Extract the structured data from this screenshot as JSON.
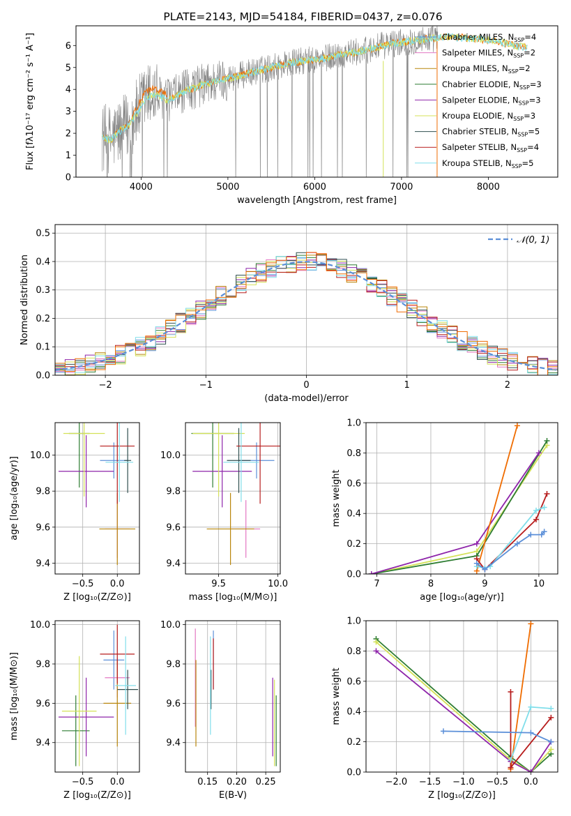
{
  "colors": {
    "chabrier_miles": "#5b8fd8",
    "salpeter_miles": "#e377c2",
    "kroupa_miles": "#b8860b",
    "chabrier_elodie": "#2e7d32",
    "salpeter_elodie": "#8e24aa",
    "kroupa_elodie": "#d4e157",
    "chabrier_stelib": "#2f4f4f",
    "salpeter_stelib": "#b71c1c",
    "kroupa_stelib": "#80deea",
    "data": "#808080",
    "orange": "#ef6c00",
    "normal": "#5b8fd8"
  },
  "chart_data": [
    {
      "id": "spectrum",
      "type": "line",
      "title": "PLATE=2143, MJD=54184, FIBERID=0437, z=0.076",
      "xlabel": "wavelength [Angstrom, rest frame]",
      "ylabel": "Flux [fλ10⁻¹⁷ erg cm⁻² s⁻¹ A⁻¹]",
      "xlim": [
        3250,
        8800
      ],
      "ylim": [
        0,
        6.9
      ],
      "xticks": [
        4000,
        5000,
        6000,
        7000,
        8000
      ],
      "yticks": [
        0,
        1,
        2,
        3,
        4,
        5,
        6
      ],
      "legend_position": "top-right",
      "legend": [
        {
          "imf": "Chabrier",
          "lib": "MILES",
          "n": "=4",
          "color_key": "chabrier_miles"
        },
        {
          "imf": "Salpeter",
          "lib": "MILES",
          "n": "=2",
          "color_key": "salpeter_miles"
        },
        {
          "imf": "Kroupa",
          "lib": "MILES",
          "n": "=2",
          "color_key": "kroupa_miles"
        },
        {
          "imf": "Chabrier",
          "lib": "ELODIE",
          "n": "=3",
          "color_key": "chabrier_elodie"
        },
        {
          "imf": "Salpeter",
          "lib": "ELODIE",
          "n": "=3",
          "color_key": "salpeter_elodie"
        },
        {
          "imf": "Kroupa",
          "lib": "ELODIE",
          "n": "=3",
          "color_key": "kroupa_elodie"
        },
        {
          "imf": "Chabrier",
          "lib": "STELIB",
          "n": "=5",
          "color_key": "chabrier_stelib"
        },
        {
          "imf": "Salpeter",
          "lib": "STELIB",
          "n": "=4",
          "color_key": "salpeter_stelib"
        },
        {
          "imf": "Kroupa",
          "lib": "STELIB",
          "n": "=5",
          "color_key": "kroupa_stelib"
        }
      ],
      "model_continuum": [
        [
          3550,
          1.8
        ],
        [
          3650,
          1.7
        ],
        [
          3750,
          2.1
        ],
        [
          3850,
          2.3
        ],
        [
          3950,
          2.9
        ],
        [
          4050,
          3.6
        ],
        [
          4150,
          3.8
        ],
        [
          4300,
          3.5
        ],
        [
          4500,
          3.9
        ],
        [
          4700,
          4.2
        ],
        [
          4900,
          4.4
        ],
        [
          5100,
          4.6
        ],
        [
          5300,
          4.8
        ],
        [
          5500,
          5.0
        ],
        [
          5700,
          5.2
        ],
        [
          5900,
          5.3
        ],
        [
          6100,
          5.4
        ],
        [
          6300,
          5.6
        ],
        [
          6500,
          5.7
        ],
        [
          6700,
          5.9
        ],
        [
          6900,
          6.1
        ],
        [
          7100,
          6.2
        ],
        [
          7300,
          6.3
        ],
        [
          7500,
          6.4
        ],
        [
          7700,
          6.35
        ],
        [
          7900,
          6.3
        ],
        [
          8100,
          6.2
        ],
        [
          8300,
          6.0
        ],
        [
          8450,
          5.9
        ]
      ],
      "data_span": [
        3550,
        7420
      ]
    },
    {
      "id": "residuals",
      "type": "line",
      "xlabel": "(data-model)/error",
      "ylabel": "Normed distribution",
      "xlim": [
        -2.5,
        2.5
      ],
      "ylim": [
        0,
        0.53
      ],
      "xticks": [
        -2,
        -1,
        0,
        1,
        2
      ],
      "xtick_labels": [
        "−2",
        "−1",
        "0",
        "1",
        "2"
      ],
      "yticks": [
        0,
        0.1,
        0.2,
        0.3,
        0.4,
        0.5
      ],
      "ytick_labels": [
        "0.0",
        "0.1",
        "0.2",
        "0.3",
        "0.4",
        "0.5"
      ],
      "grid": true,
      "legend_position": "top-right",
      "normal_label": "𝒩(0, 1)",
      "bin_width": 0.1
    },
    {
      "id": "age_vs_Z",
      "type": "scatter",
      "xlabel": "Z [log₁₀(Z/Z⊙)]",
      "ylabel": "age  [log₁₀(age/yr)]",
      "xlim": [
        -0.9,
        0.32
      ],
      "ylim": [
        9.34,
        10.18
      ],
      "xticks": [
        -0.5,
        0.0
      ],
      "xtick_labels": [
        "−0.5",
        "0.0"
      ],
      "yticks": [
        9.4,
        9.6,
        9.8,
        10.0
      ],
      "ytick_labels": [
        "9.4",
        "9.6",
        "9.8",
        "10.0"
      ],
      "grid": true,
      "points": [
        {
          "color_key": "chabrier_miles",
          "x": -0.05,
          "xerr": 0.2,
          "y": 9.97,
          "yerr": 0.1
        },
        {
          "color_key": "salpeter_miles",
          "x": 0.0,
          "xerr": 0.18,
          "y": 9.59,
          "yerr": 0.16
        },
        {
          "color_key": "kroupa_miles",
          "x": 0.0,
          "xerr": 0.26,
          "y": 9.59,
          "yerr": 0.2
        },
        {
          "color_key": "chabrier_elodie",
          "x": -0.55,
          "xerr": 0.15,
          "y": 10.12,
          "yerr": 0.3
        },
        {
          "color_key": "salpeter_elodie",
          "x": -0.45,
          "xerr": 0.4,
          "y": 9.91,
          "yerr": 0.2
        },
        {
          "color_key": "kroupa_elodie",
          "x": -0.48,
          "xerr": 0.3,
          "y": 10.12,
          "yerr": 0.35
        },
        {
          "color_key": "chabrier_stelib",
          "x": 0.15,
          "xerr": 0.05,
          "y": 9.97,
          "yerr": 0.18
        },
        {
          "color_key": "salpeter_stelib",
          "x": 0.0,
          "xerr": 0.25,
          "y": 10.05,
          "yerr": 0.32
        },
        {
          "color_key": "kroupa_stelib",
          "x": 0.03,
          "xerr": 0.2,
          "y": 9.96,
          "yerr": 0.22
        }
      ]
    },
    {
      "id": "age_vs_mass",
      "type": "scatter",
      "xlabel": "mass [log₁₀(M/M⊙)]",
      "ylabel": "",
      "xlim": [
        9.22,
        10.02
      ],
      "ylim": [
        9.34,
        10.18
      ],
      "xticks": [
        9.5,
        10.0
      ],
      "xtick_labels": [
        "9.5",
        "10.0"
      ],
      "yticks": [
        9.4,
        9.6,
        9.8,
        10.0
      ],
      "ytick_labels": [
        "9.4",
        "9.6",
        "9.8",
        "10.0"
      ],
      "grid": true,
      "points": [
        {
          "color_key": "chabrier_miles",
          "x": 9.82,
          "xerr": 0.15,
          "y": 9.97,
          "yerr": 0.1
        },
        {
          "color_key": "salpeter_miles",
          "x": 9.73,
          "xerr": 0.12,
          "y": 9.59,
          "yerr": 0.16
        },
        {
          "color_key": "kroupa_miles",
          "x": 9.6,
          "xerr": 0.2,
          "y": 9.59,
          "yerr": 0.2
        },
        {
          "color_key": "chabrier_elodie",
          "x": 9.45,
          "xerr": 0.18,
          "y": 10.12,
          "yerr": 0.3
        },
        {
          "color_key": "salpeter_elodie",
          "x": 9.53,
          "xerr": 0.25,
          "y": 9.91,
          "yerr": 0.2
        },
        {
          "color_key": "kroupa_elodie",
          "x": 9.5,
          "xerr": 0.22,
          "y": 10.12,
          "yerr": 0.35
        },
        {
          "color_key": "chabrier_stelib",
          "x": 9.67,
          "xerr": 0.1,
          "y": 9.97,
          "yerr": 0.18
        },
        {
          "color_key": "salpeter_stelib",
          "x": 9.85,
          "xerr": 0.2,
          "y": 10.05,
          "yerr": 0.32
        },
        {
          "color_key": "kroupa_stelib",
          "x": 9.69,
          "xerr": 0.15,
          "y": 9.96,
          "yerr": 0.22
        }
      ]
    },
    {
      "id": "weight_vs_age",
      "type": "line",
      "xlabel": "age  [log₁₀(age/yr)]",
      "ylabel": "mass weight",
      "xlim": [
        6.8,
        10.35
      ],
      "ylim": [
        0,
        1.0
      ],
      "xticks": [
        7,
        8,
        9,
        10
      ],
      "yticks": [
        0,
        0.2,
        0.4,
        0.6,
        0.8,
        1.0
      ],
      "ytick_labels": [
        "0.0",
        "0.2",
        "0.4",
        "0.6",
        "0.8",
        "1.0"
      ],
      "grid": true,
      "series": [
        {
          "color_key": "kroupa_elodie",
          "points": [
            [
              6.9,
              0.0
            ],
            [
              8.85,
              0.15
            ],
            [
              10.15,
              0.85
            ]
          ]
        },
        {
          "color_key": "chabrier_elodie",
          "points": [
            [
              6.9,
              0.0
            ],
            [
              8.85,
              0.12
            ],
            [
              10.15,
              0.88
            ]
          ]
        },
        {
          "color_key": "salpeter_elodie",
          "points": [
            [
              6.9,
              0.0
            ],
            [
              8.85,
              0.2
            ],
            [
              10.0,
              0.8
            ]
          ]
        },
        {
          "color_key": "orange",
          "points": [
            [
              8.85,
              0.02
            ],
            [
              9.6,
              0.98
            ]
          ]
        },
        {
          "color_key": "salpeter_stelib",
          "points": [
            [
              8.85,
              0.1
            ],
            [
              9.0,
              0.03
            ],
            [
              9.95,
              0.36
            ],
            [
              10.15,
              0.53
            ]
          ]
        },
        {
          "color_key": "kroupa_stelib",
          "points": [
            [
              8.85,
              0.05
            ],
            [
              9.0,
              0.04
            ],
            [
              9.1,
              0.05
            ],
            [
              9.95,
              0.42
            ],
            [
              10.1,
              0.44
            ]
          ]
        },
        {
          "color_key": "chabrier_miles",
          "points": [
            [
              8.85,
              0.07
            ],
            [
              9.0,
              0.03
            ],
            [
              9.6,
              0.2
            ],
            [
              9.85,
              0.26
            ],
            [
              10.05,
              0.26
            ],
            [
              10.1,
              0.28
            ]
          ]
        }
      ]
    },
    {
      "id": "mass_vs_Z",
      "type": "scatter",
      "xlabel": "Z [log₁₀(Z/Z⊙)]",
      "ylabel": "mass [log₁₀(M/M⊙)]",
      "xlim": [
        -0.9,
        0.32
      ],
      "ylim": [
        9.25,
        10.02
      ],
      "xticks": [
        -0.5,
        0.0
      ],
      "xtick_labels": [
        "−0.5",
        "0.0"
      ],
      "yticks": [
        9.4,
        9.6,
        9.8,
        10.0
      ],
      "ytick_labels": [
        "9.4",
        "9.6",
        "9.8",
        "10.0"
      ],
      "grid": true,
      "points": [
        {
          "color_key": "chabrier_miles",
          "x": -0.05,
          "xerr": 0.15,
          "y": 9.82,
          "yerr": 0.15
        },
        {
          "color_key": "salpeter_miles",
          "x": 0.0,
          "xerr": 0.18,
          "y": 9.73,
          "yerr": 0.1
        },
        {
          "color_key": "kroupa_miles",
          "x": 0.0,
          "xerr": 0.2,
          "y": 9.6,
          "yerr": 0.22
        },
        {
          "color_key": "chabrier_elodie",
          "x": -0.6,
          "xerr": 0.2,
          "y": 9.46,
          "yerr": 0.18
        },
        {
          "color_key": "salpeter_elodie",
          "x": -0.45,
          "xerr": 0.4,
          "y": 9.53,
          "yerr": 0.2
        },
        {
          "color_key": "kroupa_elodie",
          "x": -0.55,
          "xerr": 0.25,
          "y": 9.56,
          "yerr": 0.28
        },
        {
          "color_key": "chabrier_stelib",
          "x": 0.15,
          "xerr": 0.15,
          "y": 9.67,
          "yerr": 0.1
        },
        {
          "color_key": "salpeter_stelib",
          "x": 0.0,
          "xerr": 0.25,
          "y": 9.85,
          "yerr": 0.15
        },
        {
          "color_key": "kroupa_stelib",
          "x": 0.12,
          "xerr": 0.15,
          "y": 9.69,
          "yerr": 0.25
        }
      ]
    },
    {
      "id": "mass_vs_ebv",
      "type": "scatter",
      "xlabel": "E(B-V)",
      "ylabel": "",
      "xlim": [
        0.112,
        0.275
      ],
      "ylim": [
        9.25,
        10.02
      ],
      "xticks": [
        0.15,
        0.2,
        0.25
      ],
      "xtick_labels": [
        "0.15",
        "0.20",
        "0.25"
      ],
      "yticks": [
        9.4,
        9.6,
        9.8,
        10.0
      ],
      "ytick_labels": [
        "9.4",
        "9.6",
        "9.8",
        "10.0"
      ],
      "grid": true,
      "points": [
        {
          "color_key": "chabrier_miles",
          "x": 0.16,
          "y": 9.82,
          "yerr": 0.15
        },
        {
          "color_key": "salpeter_miles",
          "x": 0.129,
          "y": 9.73,
          "yerr": 0.25
        },
        {
          "color_key": "kroupa_miles",
          "x": 0.13,
          "y": 9.6,
          "yerr": 0.22
        },
        {
          "color_key": "chabrier_elodie",
          "x": 0.268,
          "y": 9.46,
          "yerr": 0.18
        },
        {
          "color_key": "salpeter_elodie",
          "x": 0.262,
          "y": 9.53,
          "yerr": 0.2
        },
        {
          "color_key": "kroupa_elodie",
          "x": 0.265,
          "y": 9.5,
          "yerr": 0.22
        },
        {
          "color_key": "chabrier_stelib",
          "x": 0.156,
          "y": 9.67,
          "yerr": 0.1
        },
        {
          "color_key": "salpeter_stelib",
          "x": 0.16,
          "y": 9.8,
          "yerr": 0.13
        },
        {
          "color_key": "kroupa_stelib",
          "x": 0.155,
          "y": 9.69,
          "yerr": 0.25
        }
      ]
    },
    {
      "id": "weight_vs_Z",
      "type": "line",
      "xlabel": "Z [log₁₀(Z/Z⊙)]",
      "ylabel": "mass weight",
      "xlim": [
        -2.45,
        0.4
      ],
      "ylim": [
        0,
        1.0
      ],
      "xticks": [
        -2.0,
        -1.5,
        -1.0,
        -0.5,
        0.0
      ],
      "xtick_labels": [
        "−2.0",
        "−1.5",
        "−1.0",
        "−0.5",
        "0.0"
      ],
      "yticks": [
        0,
        0.2,
        0.4,
        0.6,
        0.8,
        1.0
      ],
      "ytick_labels": [
        "0.0",
        "0.2",
        "0.4",
        "0.6",
        "0.8",
        "1.0"
      ],
      "grid": true,
      "series": [
        {
          "color_key": "chabrier_elodie",
          "points": [
            [
              -2.3,
              0.88
            ],
            [
              -0.3,
              0.1
            ],
            [
              0.0,
              0.0
            ],
            [
              0.3,
              0.12
            ]
          ]
        },
        {
          "color_key": "kroupa_elodie",
          "points": [
            [
              -2.3,
              0.86
            ],
            [
              -0.3,
              0.08
            ],
            [
              0.0,
              0.0
            ],
            [
              0.3,
              0.15
            ]
          ]
        },
        {
          "color_key": "salpeter_elodie",
          "points": [
            [
              -2.3,
              0.8
            ],
            [
              -0.3,
              0.07
            ],
            [
              0.0,
              0.0
            ],
            [
              0.3,
              0.2
            ]
          ]
        },
        {
          "color_key": "orange",
          "points": [
            [
              -0.3,
              0.02
            ],
            [
              0.0,
              0.98
            ]
          ]
        },
        {
          "color_key": "salpeter_stelib",
          "points": [
            [
              -0.3,
              0.53
            ],
            [
              -0.3,
              0.03
            ],
            [
              0.3,
              0.36
            ]
          ]
        },
        {
          "color_key": "kroupa_stelib",
          "points": [
            [
              -0.3,
              0.08
            ],
            [
              0.0,
              0.43
            ],
            [
              0.3,
              0.42
            ]
          ]
        },
        {
          "color_key": "chabrier_miles",
          "points": [
            [
              -1.3,
              0.27
            ],
            [
              0.0,
              0.26
            ],
            [
              0.3,
              0.2
            ]
          ]
        }
      ]
    }
  ]
}
